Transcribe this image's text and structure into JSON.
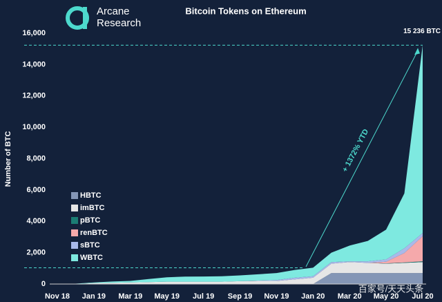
{
  "chart_data": {
    "type": "stacked-area",
    "brand": [
      "Arcane",
      "Research"
    ],
    "title": "Bitcoin Tokens on Ethereum",
    "y_label": "Number of BTC",
    "categories": [
      "Nov 18",
      null,
      "Jan 19",
      null,
      "Mar 19",
      null,
      "May 19",
      null,
      "Jul 19",
      null,
      "Sep 19",
      null,
      "Nov 19",
      null,
      "Jan 20",
      null,
      "Mar 20",
      null,
      "May 20",
      null,
      "Jul 20"
    ],
    "series": [
      {
        "name": "HBTC",
        "color": "#8496b6",
        "values": [
          0,
          0,
          0,
          0,
          0,
          0,
          0,
          0,
          0,
          0,
          0,
          0,
          0,
          0,
          0,
          700,
          700,
          700,
          700,
          700,
          700
        ]
      },
      {
        "name": "imBTC",
        "color": "#e6e6e6",
        "values": [
          0,
          0,
          60,
          80,
          100,
          120,
          150,
          150,
          150,
          150,
          180,
          200,
          200,
          300,
          400,
          600,
          700,
          650,
          600,
          650,
          700
        ]
      },
      {
        "name": "pBTC",
        "color": "#1b7d74",
        "values": [
          0,
          0,
          0,
          0,
          0,
          0,
          0,
          0,
          0,
          0,
          0,
          0,
          0,
          0,
          0,
          0,
          0,
          0,
          20,
          30,
          50
        ]
      },
      {
        "name": "renBTC",
        "color": "#f5a9ab",
        "values": [
          0,
          0,
          0,
          0,
          0,
          0,
          0,
          0,
          0,
          0,
          0,
          0,
          0,
          0,
          0,
          0,
          0,
          0,
          100,
          600,
          1600
        ]
      },
      {
        "name": "sBTC",
        "color": "#a9b9ea",
        "values": [
          0,
          0,
          0,
          0,
          0,
          0,
          0,
          0,
          0,
          0,
          0,
          20,
          50,
          100,
          100,
          100,
          50,
          100,
          150,
          300,
          200
        ]
      },
      {
        "name": "WBTC",
        "color": "#7ee9e0",
        "values": [
          0,
          20,
          40,
          80,
          100,
          200,
          280,
          320,
          330,
          350,
          370,
          400,
          450,
          500,
          540,
          600,
          1000,
          1300,
          1900,
          3500,
          11986
        ]
      }
    ],
    "ylim": [
      0,
      16000
    ],
    "yticks": [
      0,
      {
        "value": 2000,
        "label": "2,000"
      },
      {
        "value": 4000,
        "label": "4,000"
      },
      {
        "value": 6000,
        "label": "6,000"
      },
      {
        "value": 8000,
        "label": "8,000"
      },
      {
        "value": 10000,
        "label": "10,000"
      },
      {
        "value": 12000,
        "label": "12,000"
      },
      {
        "value": 14000,
        "label": "14,000"
      },
      {
        "value": 16000,
        "label": "16,000"
      }
    ],
    "legend": "lower left",
    "total": 15236,
    "total_label": "15 236 BTC",
    "ytd_start": 1035,
    "ytd_label": "+ 1372% YTD",
    "watermark": "百家号/天天头条"
  }
}
